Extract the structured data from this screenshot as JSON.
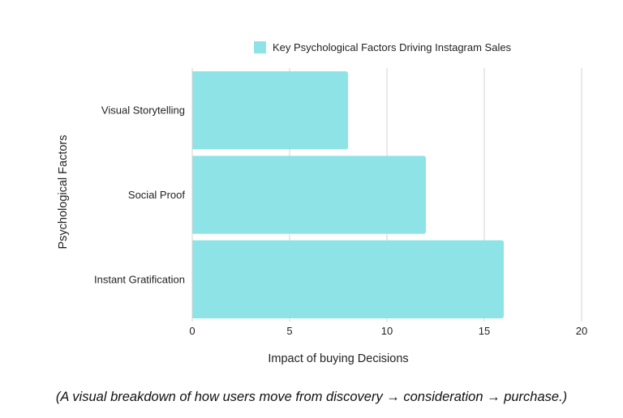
{
  "chart_data": {
    "type": "bar",
    "orientation": "horizontal",
    "legend": {
      "label": "Key Psychological Factors Driving Instagram Sales",
      "placement": "top-center"
    },
    "categories": [
      "Visual Storytelling",
      "Social Proof",
      "Instant Gratification"
    ],
    "series": [
      {
        "name": "Key Psychological Factors Driving Instagram Sales",
        "values": [
          8,
          12,
          16
        ],
        "color": "#8ee3e6"
      }
    ],
    "xlabel": "Impact of buying Decisions",
    "ylabel": "Psychological Factors",
    "xlim": [
      0,
      20
    ],
    "xticks": [
      0,
      5,
      10,
      15,
      20
    ],
    "grid": true,
    "grid_color": "#d3d3d3"
  },
  "caption": "(A visual breakdown of how users move from discovery → consideration → purchase.)"
}
